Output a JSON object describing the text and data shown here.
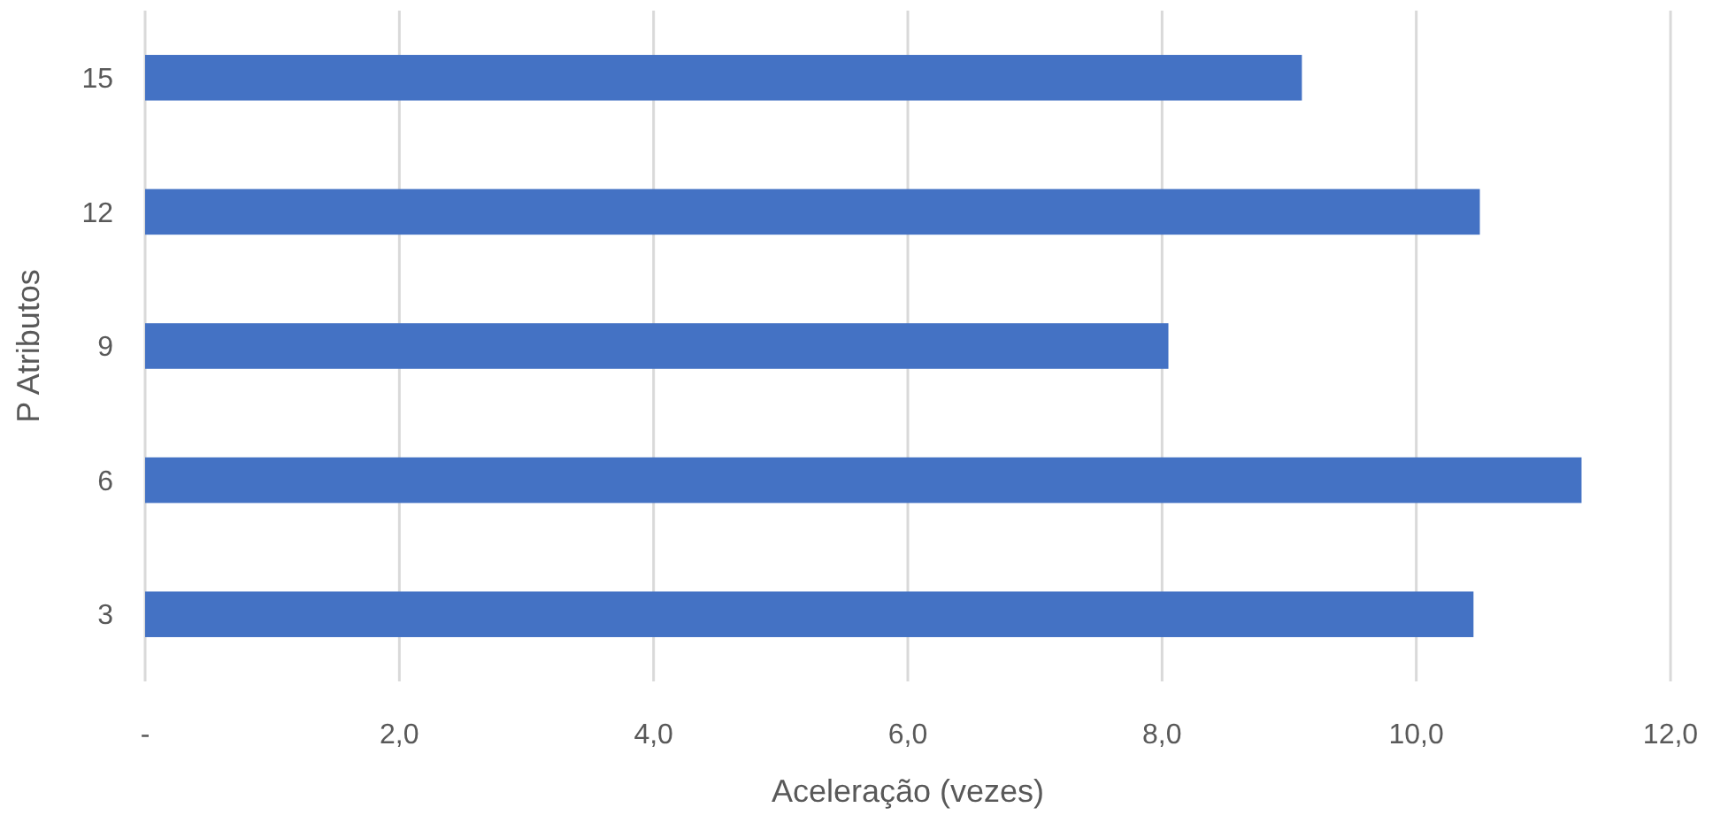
{
  "chart_data": {
    "type": "bar",
    "orientation": "horizontal",
    "xlabel": "Aceleração (vezes)",
    "ylabel": "P Atributos",
    "categories": [
      "15",
      "12",
      "9",
      "6",
      "3"
    ],
    "values": [
      9.1,
      10.5,
      8.05,
      11.3,
      10.45
    ],
    "color": "#4472c4",
    "xlim": [
      0,
      12
    ],
    "xticks": [
      {
        "value": 0,
        "label": "-"
      },
      {
        "value": 2,
        "label": "2,0"
      },
      {
        "value": 4,
        "label": "4,0"
      },
      {
        "value": 6,
        "label": "6,0"
      },
      {
        "value": 8,
        "label": "8,0"
      },
      {
        "value": 10,
        "label": "10,0"
      },
      {
        "value": 12,
        "label": "12,0"
      }
    ],
    "grid": "x"
  }
}
